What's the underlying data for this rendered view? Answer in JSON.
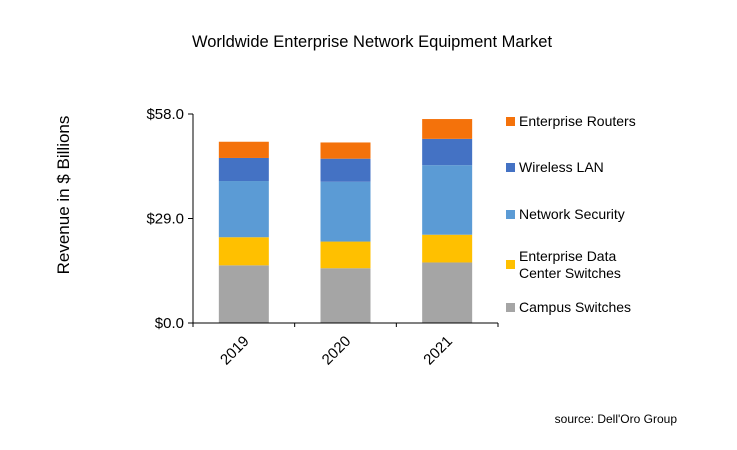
{
  "chart_data": {
    "type": "bar",
    "stacked": true,
    "title": "Worldwide Enterprise Network Equipment Market",
    "ylabel": "Revenue in $ Billions",
    "xlabel": "",
    "ylim": [
      0,
      58
    ],
    "yticks": [
      "$0.0",
      "$29.0",
      "$58.0"
    ],
    "ytick_values": [
      0,
      29,
      58
    ],
    "categories": [
      "2019",
      "2020",
      "2021"
    ],
    "series": [
      {
        "name": "Campus Switches",
        "color": "#a5a5a5",
        "values": [
          16.0,
          15.2,
          16.8
        ]
      },
      {
        "name": "Enterprise Data Center Switches",
        "name_lines": [
          "Enterprise Data",
          "Center Switches"
        ],
        "color": "#ffc000",
        "values": [
          7.8,
          7.4,
          7.7
        ]
      },
      {
        "name": "Network Security",
        "color": "#5b9bd5",
        "values": [
          15.6,
          16.6,
          19.3
        ]
      },
      {
        "name": "Wireless LAN",
        "color": "#4472c4",
        "values": [
          6.4,
          6.4,
          7.3
        ]
      },
      {
        "name": "Enterprise Routers",
        "color": "#f4720b",
        "values": [
          4.5,
          4.5,
          5.5
        ]
      }
    ],
    "legend_position": "right",
    "legend_order": [
      "Enterprise Routers",
      "Wireless LAN",
      "Network Security",
      "Enterprise Data Center Switches",
      "Campus Switches"
    ],
    "grid": false,
    "source": "source: Dell'Oro Group"
  }
}
